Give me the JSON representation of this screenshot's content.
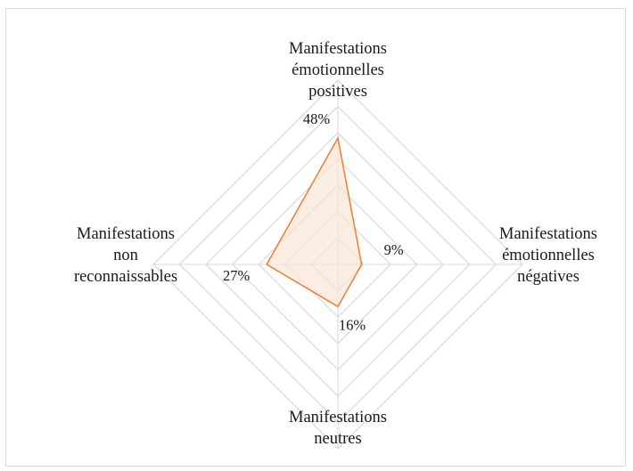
{
  "chart_data": {
    "type": "radar",
    "axes": [
      [
        "Manifestations",
        "émotionnelles",
        "positives"
      ],
      [
        "Manifestations",
        "émotionnelles",
        "négatives"
      ],
      [
        "Manifestations",
        "neutres"
      ],
      [
        "Manifestations",
        "non",
        "reconnaissables"
      ]
    ],
    "values": [
      48,
      9,
      16,
      27
    ],
    "data_labels": [
      "48%",
      "9%",
      "16%",
      "27%"
    ],
    "unit": "%",
    "rmax": 70,
    "gridlines": [
      10,
      20,
      30,
      40,
      50,
      60,
      70
    ],
    "grid": true,
    "colors": {
      "series_line": "#ed7d31",
      "series_fill": "#fbe5d6",
      "grid": "#d9d9d9",
      "border": "#d9d9d9",
      "text": "#1a1a1a"
    }
  }
}
